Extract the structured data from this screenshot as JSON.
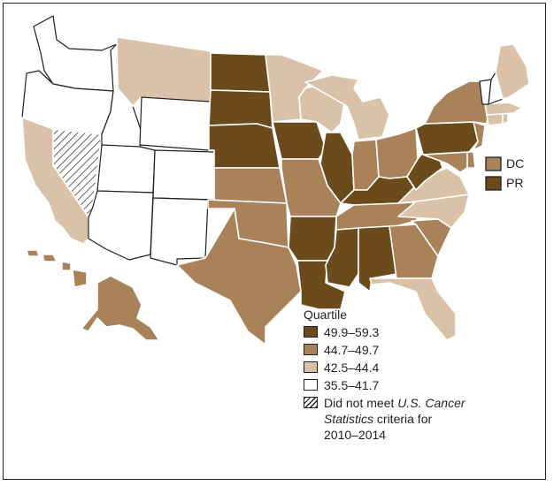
{
  "legend": {
    "title": "Quartile",
    "items": [
      {
        "label": "49.9–59.3",
        "color": "#6b4a1c"
      },
      {
        "label": "44.7–49.7",
        "color": "#a9825a"
      },
      {
        "label": "42.5–44.4",
        "color": "#d9c2a7"
      },
      {
        "label": "35.5–41.7",
        "color": "#ffffff"
      }
    ],
    "na_prefix": "Did not meet ",
    "na_italic_1": "U.S. Cancer",
    "na_italic_2": "Statistics",
    "na_suffix": " criteria for",
    "na_line3": "2010–2014"
  },
  "territories": {
    "dc_label": "DC",
    "pr_label": "PR"
  },
  "quartile_by_state": {
    "q1": [
      "ND",
      "SD",
      "NE",
      "IA",
      "IL",
      "AR",
      "LA",
      "MS",
      "AL",
      "KY",
      "WV",
      "PA",
      "PR"
    ],
    "q2": [
      "KS",
      "OK",
      "TX",
      "MO",
      "IN",
      "OH",
      "TN",
      "GA",
      "SC",
      "NY",
      "NJ",
      "DE",
      "MD",
      "AK",
      "HI",
      "DC"
    ],
    "q3": [
      "CA",
      "MT",
      "MN",
      "WI",
      "MI",
      "FL",
      "NC",
      "VA",
      "ME",
      "MA",
      "RI",
      "CT"
    ],
    "q4": [
      "WA",
      "OR",
      "ID",
      "WY",
      "UT",
      "CO",
      "AZ",
      "NM",
      "VT",
      "NH"
    ],
    "not_met": [
      "NV"
    ]
  }
}
